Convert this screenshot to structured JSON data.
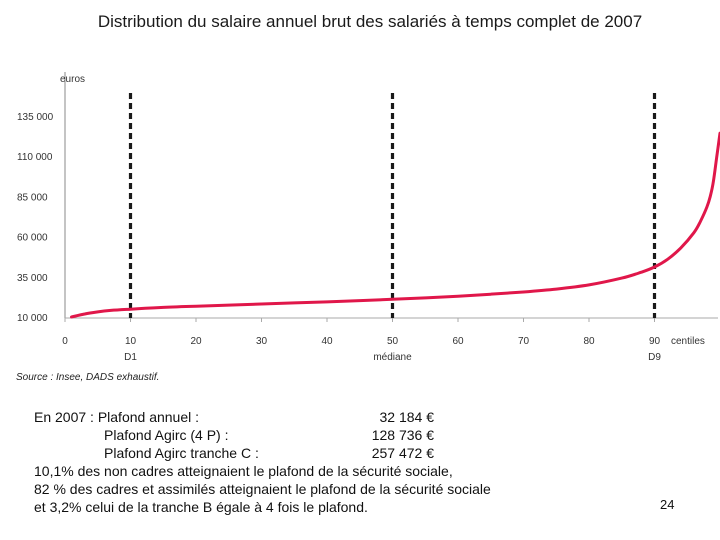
{
  "title": "Distribution du salaire annuel brut des salariés à temps complet de 2007",
  "chart_data": {
    "type": "line",
    "ylabel": "euros",
    "xlabel": "centiles",
    "ylim": [
      10000,
      150000
    ],
    "xlim": [
      0,
      100
    ],
    "y_ticks": [
      "10 000",
      "35 000",
      "60 000",
      "85 000",
      "110 000",
      "135 000"
    ],
    "y_tick_values": [
      10000,
      35000,
      60000,
      85000,
      110000,
      135000
    ],
    "x_ticks": [
      "0",
      "10",
      "20",
      "30",
      "40",
      "50",
      "60",
      "70",
      "80",
      "90"
    ],
    "x_tick_values": [
      0,
      10,
      20,
      30,
      40,
      50,
      60,
      70,
      80,
      90
    ],
    "grid": false,
    "series": [
      {
        "color": "#e0174a",
        "x": [
          1,
          3,
          5,
          7,
          10,
          15,
          20,
          25,
          30,
          35,
          40,
          45,
          50,
          55,
          60,
          65,
          70,
          75,
          80,
          85,
          88,
          90,
          92,
          94,
          96,
          97,
          98,
          98.5,
          99,
          99.5,
          100
        ],
        "y": [
          10600,
          12500,
          13800,
          14700,
          15500,
          16600,
          17300,
          18000,
          18700,
          19400,
          20000,
          20800,
          21600,
          22500,
          23500,
          24800,
          26200,
          28000,
          30600,
          34800,
          38500,
          41700,
          46500,
          53500,
          63000,
          70000,
          79000,
          85500,
          95000,
          110000,
          125000
        ]
      }
    ],
    "reference_lines": [
      {
        "x": 10,
        "label": "D1"
      },
      {
        "x": 50,
        "label": "médiane"
      },
      {
        "x": 90,
        "label": "D9"
      }
    ]
  },
  "source": "Source : Insee, DADS exhaustif.",
  "notes": {
    "line1_label": "En 2007 : Plafond annuel :",
    "line1_value": "32 184 €",
    "line2_label": "Plafond Agirc (4 P) :",
    "line2_value": "128 736 €",
    "line3_label": "Plafond Agirc tranche C :",
    "line3_value": "257 472 €",
    "line4": "10,1% des non cadres atteignaient le plafond de la sécurité sociale,",
    "line5": "82 % des cadres et assimilés atteignaient le plafond de la sécurité sociale",
    "line6": "et 3,2% celui de la tranche B égale à 4 fois le plafond."
  },
  "page_number": "24"
}
